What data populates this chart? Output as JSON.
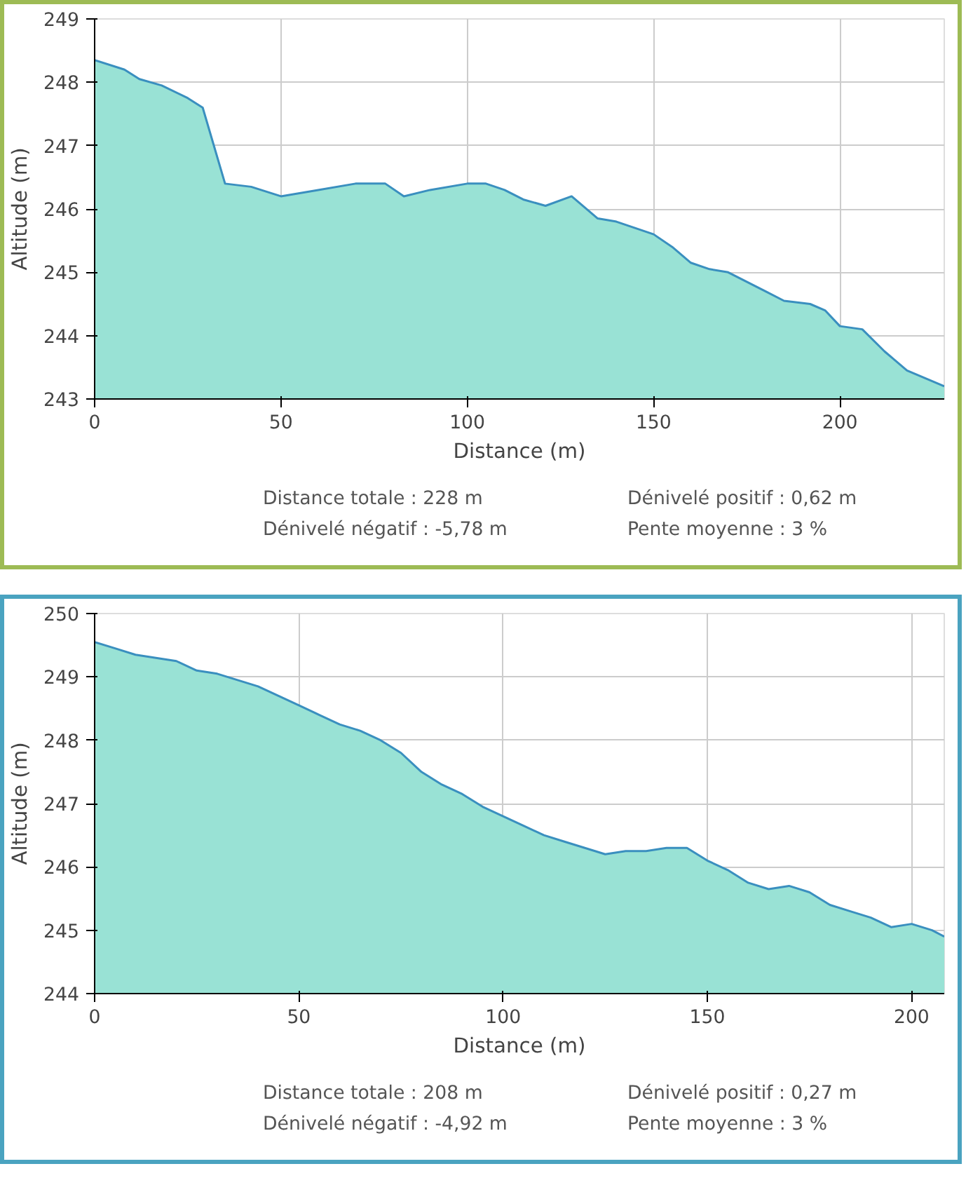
{
  "chart_data": [
    {
      "type": "area",
      "xlabel": "Distance (m)",
      "ylabel": "Altitude (m)",
      "xlim": [
        0,
        228
      ],
      "ylim": [
        243,
        249
      ],
      "xticks": [
        0,
        50,
        100,
        150,
        200
      ],
      "yticks": [
        243,
        244,
        245,
        246,
        247,
        248,
        249
      ],
      "grid": true,
      "x": [
        0,
        8,
        12,
        18,
        25,
        29,
        35,
        42,
        50,
        60,
        70,
        78,
        83,
        90,
        100,
        105,
        110,
        115,
        121,
        128,
        135,
        140,
        145,
        150,
        155,
        160,
        165,
        170,
        175,
        180,
        185,
        192,
        196,
        200,
        206,
        212,
        218,
        224,
        228
      ],
      "series": [
        {
          "color": "#3a8fbf",
          "values": [
            248.35,
            248.2,
            248.05,
            247.95,
            247.75,
            247.6,
            246.4,
            246.35,
            246.2,
            246.3,
            246.4,
            246.4,
            246.2,
            246.3,
            246.4,
            246.4,
            246.3,
            246.15,
            246.05,
            246.2,
            245.85,
            245.8,
            245.7,
            245.6,
            245.4,
            245.15,
            245.05,
            245.0,
            244.85,
            244.7,
            244.55,
            244.5,
            244.4,
            244.15,
            244.1,
            243.75,
            243.45,
            243.3,
            243.2
          ]
        }
      ],
      "annotations": [
        "Distance totale : 228 m",
        "Dénivelé positif : 0,62 m",
        "Dénivelé négatif : -5,78 m",
        "Pente moyenne : 3 %"
      ]
    },
    {
      "type": "area",
      "xlabel": "Distance (m)",
      "ylabel": "Altitude (m)",
      "xlim": [
        0,
        208
      ],
      "ylim": [
        244,
        250
      ],
      "xticks": [
        0,
        50,
        100,
        150,
        200
      ],
      "yticks": [
        244,
        245,
        246,
        247,
        248,
        249,
        250
      ],
      "grid": true,
      "x": [
        0,
        5,
        10,
        15,
        20,
        25,
        30,
        35,
        40,
        45,
        50,
        55,
        60,
        65,
        70,
        75,
        80,
        85,
        90,
        95,
        100,
        105,
        110,
        115,
        120,
        125,
        130,
        135,
        140,
        145,
        150,
        155,
        160,
        165,
        170,
        175,
        180,
        185,
        190,
        195,
        200,
        205,
        208
      ],
      "series": [
        {
          "color": "#3a8fbf",
          "values": [
            249.55,
            249.45,
            249.35,
            249.3,
            249.25,
            249.1,
            249.05,
            248.95,
            248.85,
            248.7,
            248.55,
            248.4,
            248.25,
            248.15,
            248.0,
            247.8,
            247.5,
            247.3,
            247.15,
            246.95,
            246.8,
            246.65,
            246.5,
            246.4,
            246.3,
            246.2,
            246.25,
            246.25,
            246.3,
            246.3,
            246.1,
            245.95,
            245.75,
            245.65,
            245.7,
            245.6,
            245.4,
            245.3,
            245.2,
            245.05,
            245.1,
            245.0,
            244.9
          ]
        }
      ],
      "annotations": [
        "Distance totale : 208 m",
        "Dénivelé positif : 0,27 m",
        "Dénivelé négatif : -4,92 m",
        "Pente moyenne : 3 %"
      ]
    }
  ]
}
